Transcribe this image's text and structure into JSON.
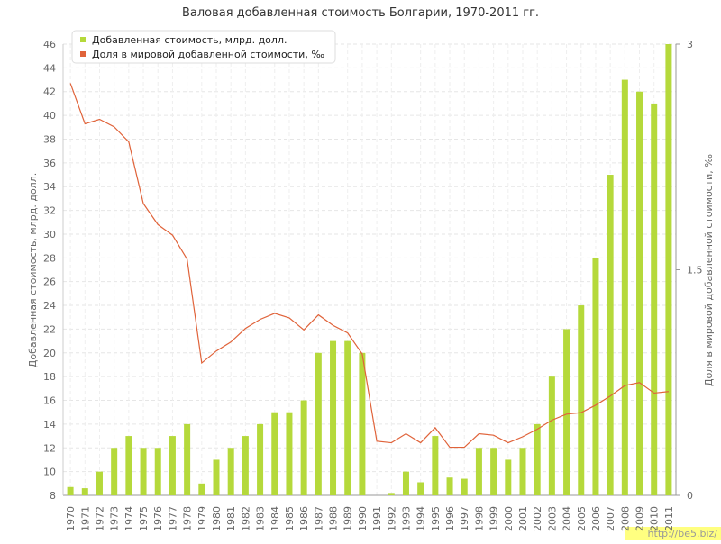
{
  "chart_data": {
    "type": "bar_line",
    "title": "Валовая добавленная стоимость Болгарии, 1970-2011 гг.",
    "y_label": "Добавленная стоимость, млрд. долл.",
    "y2_label": "Доля в мировой добавленной стоимости, ‰",
    "watermark": "http://be5.biz/",
    "categories": [
      "1970",
      "1971",
      "1972",
      "1973",
      "1974",
      "1975",
      "1976",
      "1977",
      "1978",
      "1979",
      "1980",
      "1981",
      "1982",
      "1983",
      "1984",
      "1985",
      "1986",
      "1987",
      "1988",
      "1989",
      "1990",
      "1991",
      "1992",
      "1993",
      "1994",
      "1995",
      "1996",
      "1997",
      "1998",
      "1999",
      "2000",
      "2001",
      "2002",
      "2003",
      "2004",
      "2005",
      "2006",
      "2007",
      "2008",
      "2009",
      "2010",
      "2011"
    ],
    "series": [
      {
        "name": "Добавленная стоимость, млрд. долл.",
        "color": "#b5d93b",
        "kind": "bar",
        "values": [
          8.7,
          8.6,
          10,
          12,
          13,
          12,
          12,
          13,
          14,
          9,
          11,
          12,
          13,
          14,
          15,
          15,
          16,
          20,
          21,
          21,
          20,
          8,
          8.2,
          10,
          9.1,
          13,
          9.5,
          9.4,
          12,
          12,
          11,
          12,
          14,
          18,
          22,
          24,
          28,
          35,
          43,
          42,
          41,
          46
        ]
      },
      {
        "name": "Доля в мировой добавленной стоимости, ‰",
        "color": "#e0633a",
        "kind": "line",
        "axis": "y2",
        "values": [
          2.74,
          2.47,
          2.5,
          2.45,
          2.35,
          1.94,
          1.8,
          1.73,
          1.57,
          0.88,
          0.96,
          1.02,
          1.11,
          1.17,
          1.21,
          1.18,
          1.1,
          1.2,
          1.13,
          1.08,
          0.94,
          0.36,
          0.35,
          0.41,
          0.35,
          0.45,
          0.32,
          0.32,
          0.41,
          0.4,
          0.35,
          0.39,
          0.44,
          0.5,
          0.54,
          0.55,
          0.6,
          0.66,
          0.73,
          0.75,
          0.68,
          0.69
        ]
      }
    ],
    "ylim": [
      8,
      46
    ],
    "yticks": [
      8,
      10,
      12,
      14,
      16,
      18,
      20,
      22,
      24,
      26,
      28,
      30,
      32,
      34,
      36,
      38,
      40,
      42,
      44,
      46
    ],
    "y2lim": [
      0,
      3
    ],
    "y2ticks": [
      0,
      1.5,
      3
    ],
    "grid": true,
    "legend": "top-left"
  }
}
